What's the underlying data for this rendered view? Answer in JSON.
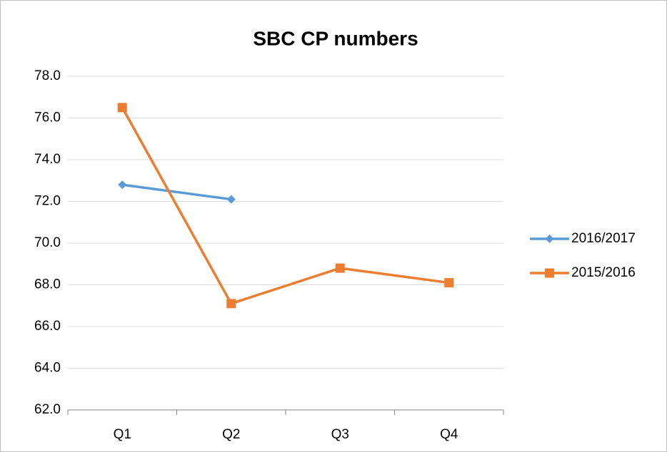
{
  "chart_data": {
    "type": "line",
    "title": "SBC CP numbers",
    "categories": [
      "Q1",
      "Q2",
      "Q3",
      "Q4"
    ],
    "series": [
      {
        "name": "2016/2017",
        "color": "#5b9bd5",
        "marker": "diamond",
        "values": [
          72.8,
          72.1,
          null,
          null
        ]
      },
      {
        "name": "2015/2016",
        "color": "#ed7d31",
        "marker": "square",
        "values": [
          76.5,
          67.1,
          68.8,
          68.1
        ]
      }
    ],
    "ylim": [
      62,
      78
    ],
    "yticks": [
      {
        "value": 62,
        "label": "62.0"
      },
      {
        "value": 64,
        "label": "64.0"
      },
      {
        "value": 66,
        "label": "66.0"
      },
      {
        "value": 68,
        "label": "68.0"
      },
      {
        "value": 70,
        "label": "70.0"
      },
      {
        "value": 72,
        "label": "72.0"
      },
      {
        "value": 74,
        "label": "74.0"
      },
      {
        "value": 76,
        "label": "76.0"
      },
      {
        "value": 78,
        "label": "78.0"
      }
    ],
    "grid": true,
    "legend": "right"
  }
}
